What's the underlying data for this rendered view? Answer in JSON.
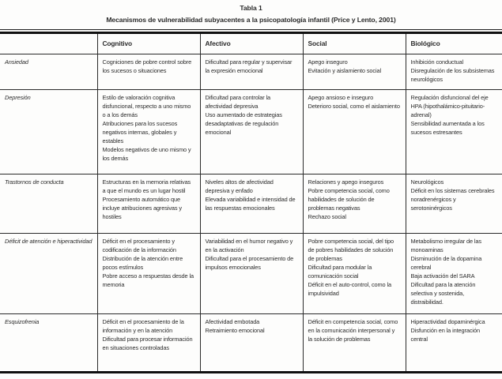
{
  "page": {
    "title": "Tabla 1",
    "subtitle": "Mecanismos de vulnerabilidad subyacentes a la psicopatología infantil (Price y Lento, 2001)"
  },
  "table": {
    "column_headers": [
      "Cognitivo",
      "Afectivo",
      "Social",
      "Biológico"
    ],
    "rows": [
      {
        "label": "Ansiedad",
        "cells": [
          [
            "Cogniciones de pobre control sobre los sucesos o situaciones"
          ],
          [
            "Dificultad para regular y supervisar la expresión emocional"
          ],
          [
            "Apego inseguro",
            "Evitación y aislamiento social"
          ],
          [
            "Inhibición conductual",
            "Disregulación de los subsistemas neurológicos"
          ]
        ]
      },
      {
        "label": "Depresión",
        "cells": [
          [
            "Estilo de valoración cognitiva disfuncional, respecto a uno mismo o a los demás",
            "Atribuciones para los sucesos negativos internas, globales y estables",
            "Modelos negativos de uno mismo y los demás"
          ],
          [
            "Dificultad para controlar la afectividad depresiva",
            "Uso aumentado de estrategias desadaptativas de regulación emocional"
          ],
          [
            "Apego ansioso e inseguro",
            "Deterioro social, como el aislamiento"
          ],
          [
            "Regulación disfuncional del eje HPA (hipothalámico-pituitario-adrenal)",
            "Sensibilidad aumentada a los sucesos estresantes"
          ]
        ]
      },
      {
        "label": "Trastornos de conducta",
        "cells": [
          [
            "Estructuras en la memoria relativas a que el mundo es un lugar hostil",
            "Procesamiento automático que incluye atribuciones agresivas y hostiles"
          ],
          [
            "Niveles altos de afectividad depresiva y enfado",
            "Elevada variabilidad e intensidad de las respuestas emocionales"
          ],
          [
            "Relaciones y apego inseguros",
            "Pobre competencia social, como habilidades de solución de problemas negativas",
            "Rechazo social"
          ],
          [
            "Neurológicos",
            "Déficit en los sistemas cerebrales noradrenérgicos y serotoninérgicos"
          ]
        ]
      },
      {
        "label": "Déficit de atención e hiperactividad",
        "cells": [
          [
            "Déficit en el procesamiento y codificación de la información",
            "Distribución de la atención entre pocos estímulos",
            "Pobre acceso a respuestas desde la memoria"
          ],
          [
            "Variabilidad en el humor negativo y en la activación",
            "Dificultad para el procesamiento de impulsos emocionales"
          ],
          [
            "Pobre competencia social, del tipo de pobres habilidades de solución de problemas",
            "Dificultad para modular la comunicación social",
            "Déficit en el auto-control, como la impulsividad"
          ],
          [
            "Metabolismo irregular de las monoaminas",
            "Disminución de la dopamina cerebral",
            "Baja activación del SARA",
            "Dificultad para la atención selectiva y sostenida, distraibilidad."
          ]
        ]
      },
      {
        "label": "Esquizofrenia",
        "cells": [
          [
            "Déficit en el procesamiento de la información y en la atención",
            "Dificultad para procesar información en situaciones controladas"
          ],
          [
            "Afectividad embotada",
            "Retraimiento emocional"
          ],
          [
            "Déficit en competencia social, como en la comunicación interpersonal y la solución de problemas"
          ],
          [
            "Hiperactividad dopaminérgica",
            "Disfunción en la integración central"
          ]
        ]
      }
    ]
  }
}
